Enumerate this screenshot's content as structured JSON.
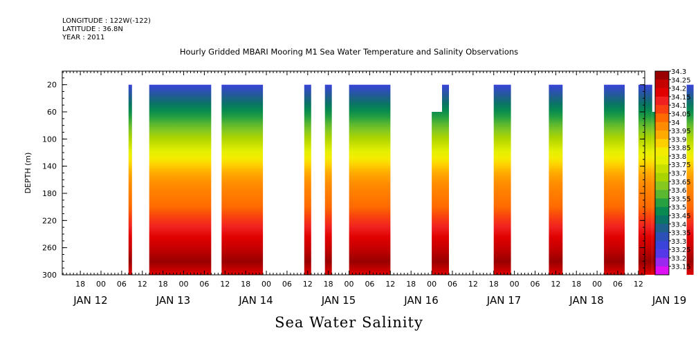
{
  "header": {
    "longitude": "LONGITUDE : 122W(-122)",
    "latitude": "LATITUDE : 36.8N",
    "year": "YEAR : 2011"
  },
  "title": "Hourly Gridded MBARI Mooring M1 Sea Water Temperature and Salinity Observations",
  "bottom_title": "Sea Water Salinity",
  "chart_data": {
    "type": "heatmap",
    "ylabel": "DEPTH (m)",
    "xlabel": "",
    "yticks": [
      "20",
      "60",
      "100",
      "140",
      "180",
      "220",
      "260",
      "300"
    ],
    "ylim": [
      300,
      0
    ],
    "hour_ticks": [
      "18",
      "00",
      "06",
      "12",
      "18",
      "00",
      "06",
      "12",
      "18",
      "00",
      "06",
      "12",
      "18",
      "00",
      "06",
      "12",
      "18",
      "00",
      "06",
      "12",
      "18",
      "00",
      "06",
      "12",
      "18",
      "00",
      "06",
      "12",
      "18",
      "00",
      "06",
      "12",
      "18",
      "00",
      "06",
      "12",
      "18",
      "00",
      "06",
      "12",
      "12"
    ],
    "date_labels": [
      "JAN 12",
      "JAN 13",
      "JAN 14",
      "JAN 15",
      "JAN 16",
      "JAN 17",
      "JAN 18",
      "JAN 19"
    ],
    "colorbar": {
      "levels": [
        "34.3",
        "34.25",
        "34.2",
        "34.15",
        "34.1",
        "34.05",
        "34",
        "33.95",
        "33.9",
        "33.85",
        "33.8",
        "33.75",
        "33.7",
        "33.65",
        "33.6",
        "33.55",
        "33.5",
        "33.45",
        "33.4",
        "33.35",
        "33.3",
        "33.25",
        "33.2",
        "33.15"
      ],
      "colors": [
        "#990000",
        "#c40000",
        "#e00000",
        "#f02020",
        "#f84010",
        "#ff6a00",
        "#ff8c00",
        "#ffaa00",
        "#ffd000",
        "#f4ec00",
        "#e4f000",
        "#c8e000",
        "#aad400",
        "#86c820",
        "#5ab830",
        "#26a040",
        "#088a50",
        "#0a7466",
        "#1f5f8c",
        "#2c4fb8",
        "#3a44d8",
        "#5538e8",
        "#9a28ee",
        "#dd11f4"
      ]
    },
    "observation_blocks": [
      {
        "start": "JAN 12 08:00",
        "end": "JAN 12 09:00",
        "top_depth": 20
      },
      {
        "start": "JAN 12 14:00",
        "end": "JAN 13 08:00",
        "top_depth": 20
      },
      {
        "start": "JAN 13 11:00",
        "end": "JAN 13 23:00",
        "top_depth": 20
      },
      {
        "start": "JAN 14 11:00",
        "end": "JAN 14 13:00",
        "top_depth": 20
      },
      {
        "start": "JAN 14 17:00",
        "end": "JAN 14 19:00",
        "top_depth": 20
      },
      {
        "start": "JAN 15 00:00",
        "end": "JAN 15 12:00",
        "top_depth": 20
      },
      {
        "start": "JAN 16 00:00",
        "end": "JAN 16 03:00",
        "top_depth": 60
      },
      {
        "start": "JAN 16 03:00",
        "end": "JAN 16 05:00",
        "top_depth": 20
      },
      {
        "start": "JAN 16 18:00",
        "end": "JAN 16 23:00",
        "top_depth": 20
      },
      {
        "start": "JAN 17 10:00",
        "end": "JAN 17 14:00",
        "top_depth": 20
      },
      {
        "start": "JAN 18 02:00",
        "end": "JAN 18 08:00",
        "top_depth": 20
      },
      {
        "start": "JAN 18 12:00",
        "end": "JAN 18 16:00",
        "top_depth": 20
      },
      {
        "start": "JAN 18 16:00",
        "end": "JAN 18 17:00",
        "top_depth": 60
      },
      {
        "start": "JAN 19 02:00",
        "end": "JAN 19 04:00",
        "top_depth": 20
      }
    ]
  }
}
